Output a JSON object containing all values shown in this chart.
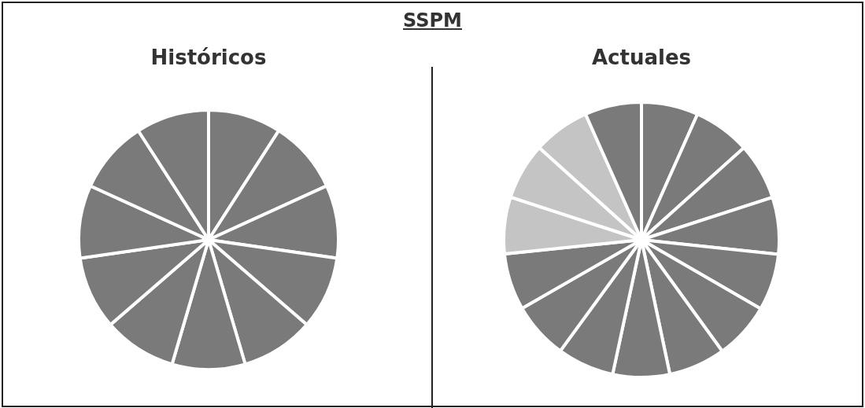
{
  "chart_data": [
    {
      "type": "pie",
      "title": "Históricos",
      "annotations": [
        "SSPM"
      ],
      "categories": [
        null,
        null,
        null,
        null,
        null,
        null,
        null,
        null,
        null,
        null,
        null
      ],
      "values": [
        9.09,
        9.09,
        9.09,
        9.09,
        9.09,
        9.09,
        9.09,
        9.09,
        9.09,
        9.09,
        9.1
      ],
      "colors": [
        "#7a7a7a",
        "#7a7a7a",
        "#7a7a7a",
        "#7a7a7a",
        "#7a7a7a",
        "#7a7a7a",
        "#7a7a7a",
        "#7a7a7a",
        "#7a7a7a",
        "#7a7a7a",
        "#7a7a7a"
      ]
    },
    {
      "type": "pie",
      "title": "Actuales",
      "categories": [
        null,
        null,
        null,
        null,
        null,
        null,
        null,
        null,
        null,
        null,
        null,
        null,
        null,
        null,
        null
      ],
      "values": [
        6.67,
        6.67,
        6.67,
        6.67,
        6.67,
        6.67,
        6.67,
        6.67,
        6.67,
        6.67,
        6.66,
        6.66,
        6.66,
        6.66,
        6.66
      ],
      "colors": [
        "#7a7a7a",
        "#7a7a7a",
        "#7a7a7a",
        "#7a7a7a",
        "#7a7a7a",
        "#7a7a7a",
        "#7a7a7a",
        "#7a7a7a",
        "#7a7a7a",
        "#7a7a7a",
        "#7a7a7a",
        "#c4c4c4",
        "#c4c4c4",
        "#c4c4c4",
        "#7a7a7a"
      ]
    }
  ]
}
